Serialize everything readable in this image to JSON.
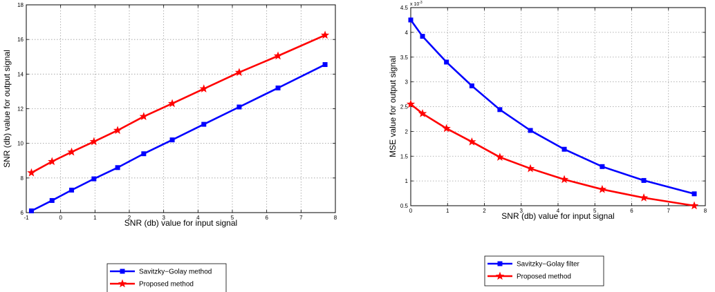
{
  "chart_data": [
    {
      "type": "line",
      "title": "",
      "xlabel": "SNR (db) value for input signal",
      "ylabel": "SNR (db) value for output signal",
      "xlim": [
        -1,
        8
      ],
      "ylim": [
        6,
        18
      ],
      "xticks": [
        -1,
        0,
        1,
        2,
        3,
        4,
        5,
        6,
        7,
        8
      ],
      "yticks": [
        6,
        8,
        10,
        12,
        14,
        16,
        18
      ],
      "grid": true,
      "legend": "below",
      "series": [
        {
          "name": "Savitzky−Golay method",
          "color": "#0000ff",
          "marker": "square",
          "x": [
            -0.85,
            -0.25,
            0.32,
            0.97,
            1.66,
            2.42,
            3.25,
            4.17,
            5.2,
            6.33,
            7.7
          ],
          "y": [
            6.1,
            6.7,
            7.3,
            7.95,
            8.6,
            9.4,
            10.2,
            11.1,
            12.1,
            13.2,
            14.55
          ]
        },
        {
          "name": "Proposed method",
          "color": "#ff0000",
          "marker": "star",
          "x": [
            -0.85,
            -0.25,
            0.32,
            0.97,
            1.66,
            2.42,
            3.25,
            4.17,
            5.2,
            6.33,
            7.7
          ],
          "y": [
            8.3,
            8.95,
            9.5,
            10.1,
            10.75,
            11.55,
            12.3,
            13.15,
            14.1,
            15.05,
            16.25
          ]
        }
      ]
    },
    {
      "type": "line",
      "title": "",
      "xlabel": "SNR (db) value for input signal",
      "ylabel": "MSE value for output signal",
      "y_exponent": "x 10",
      "y_exponent_power": "-3",
      "xlim": [
        0,
        8
      ],
      "ylim": [
        0.5,
        4.5
      ],
      "xticks": [
        0,
        1,
        2,
        3,
        4,
        5,
        6,
        7,
        8
      ],
      "yticks": [
        0.5,
        1,
        1.5,
        2,
        2.5,
        3,
        3.5,
        4,
        4.5
      ],
      "grid": true,
      "legend": "below",
      "series": [
        {
          "name": "Savitzky−Golay filter",
          "color": "#0000ff",
          "marker": "square",
          "x": [
            0,
            0.32,
            0.97,
            1.66,
            2.42,
            3.25,
            4.17,
            5.2,
            6.33,
            7.7
          ],
          "y": [
            4.25,
            3.92,
            3.4,
            2.92,
            2.44,
            2.02,
            1.64,
            1.29,
            1.01,
            0.74
          ]
        },
        {
          "name": "Proposed method",
          "color": "#ff0000",
          "marker": "star",
          "x": [
            0,
            0.32,
            0.97,
            1.66,
            2.42,
            3.25,
            4.17,
            5.2,
            6.33,
            7.7
          ],
          "y": [
            2.55,
            2.36,
            2.06,
            1.79,
            1.48,
            1.25,
            1.03,
            0.83,
            0.66,
            0.5
          ]
        }
      ]
    }
  ]
}
